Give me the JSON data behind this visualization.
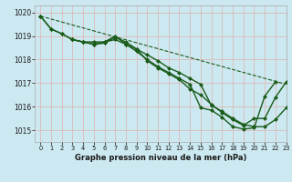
{
  "title": "Graphe pression niveau de la mer (hPa)",
  "background_color": "#cce8f0",
  "grid_color": "#ddbaba",
  "line_color": "#1a5c1a",
  "xlim": [
    -0.5,
    23
  ],
  "ylim": [
    1014.5,
    1020.3
  ],
  "yticks": [
    1015,
    1016,
    1017,
    1018,
    1019,
    1020
  ],
  "xticks": [
    0,
    1,
    2,
    3,
    4,
    5,
    6,
    7,
    8,
    9,
    10,
    11,
    12,
    13,
    14,
    15,
    16,
    17,
    18,
    19,
    20,
    21,
    22,
    23
  ],
  "series": [
    {
      "x": [
        0,
        1,
        2,
        3,
        4,
        5,
        6,
        7,
        8,
        9,
        10,
        11,
        12,
        13,
        14,
        15,
        16,
        17,
        18,
        19,
        20,
        21,
        22,
        23
      ],
      "y": [
        1019.85,
        1019.3,
        1019.1,
        1018.85,
        1018.75,
        1018.75,
        1018.75,
        1018.85,
        1018.65,
        1018.45,
        1018.2,
        1017.95,
        1017.65,
        1017.45,
        1017.2,
        1016.95,
        1016.05,
        1015.8,
        1015.5,
        1015.25,
        1015.15,
        1015.15,
        1015.45,
        1015.95
      ],
      "marker": true,
      "linewidth": 1.0
    },
    {
      "x": [
        0,
        1,
        2,
        3,
        4,
        5,
        6,
        7,
        8,
        9,
        10,
        11,
        12,
        13,
        14,
        15,
        16,
        17,
        18,
        19,
        20,
        21,
        22
      ],
      "y": [
        1019.85,
        1019.3,
        1019.1,
        1018.85,
        1018.75,
        1018.65,
        1018.75,
        1019.0,
        1018.65,
        1018.35,
        1018.0,
        1017.7,
        1017.45,
        1017.2,
        1016.95,
        1015.95,
        1015.85,
        1015.55,
        1015.15,
        1015.05,
        1015.1,
        1016.45,
        1017.05
      ],
      "marker": true,
      "linewidth": 1.0
    },
    {
      "x": [
        0,
        23
      ],
      "y": [
        1019.85,
        1016.95
      ],
      "marker": false,
      "linewidth": 0.8,
      "linestyle": "--"
    },
    {
      "x": [
        3,
        4,
        5,
        6,
        7,
        8,
        9,
        10,
        11,
        12,
        13,
        14,
        15,
        16,
        17,
        18,
        19,
        20,
        21,
        22,
        23
      ],
      "y": [
        1018.85,
        1018.75,
        1018.65,
        1018.7,
        1018.95,
        1018.75,
        1018.45,
        1017.95,
        1017.65,
        1017.4,
        1017.15,
        1016.75,
        1016.5,
        1016.1,
        1015.75,
        1015.45,
        1015.2,
        1015.5,
        1015.5,
        1016.4,
        1017.05
      ],
      "marker": true,
      "linewidth": 1.0
    }
  ]
}
